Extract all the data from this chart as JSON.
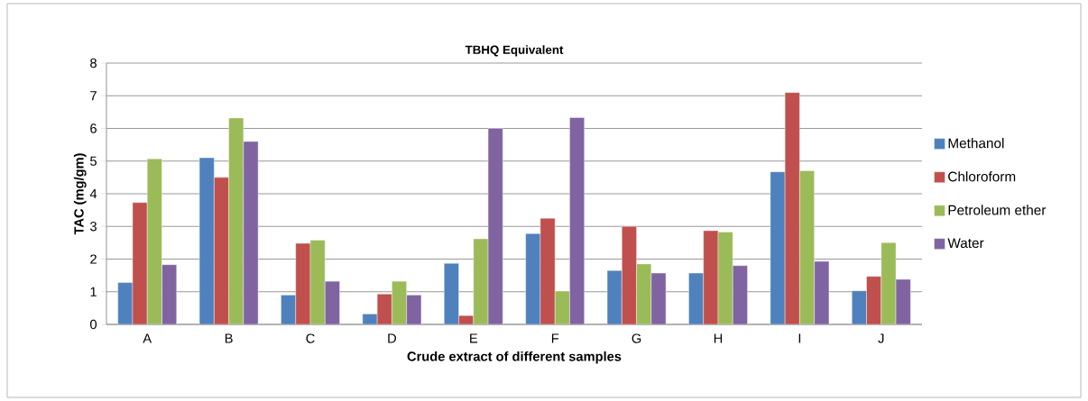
{
  "chart_data": {
    "type": "bar",
    "title": "TBHQ Equivalent",
    "xlabel": "Crude extract of different samples",
    "ylabel": "TAC (mg/gm)",
    "categories": [
      "A",
      "B",
      "C",
      "D",
      "E",
      "F",
      "G",
      "H",
      "I",
      "J"
    ],
    "series": [
      {
        "name": "Methanol",
        "color": "#4f81bd",
        "values": [
          1.28,
          5.1,
          0.9,
          0.32,
          1.87,
          2.78,
          1.65,
          1.57,
          4.67,
          1.03
        ]
      },
      {
        "name": "Chloroform",
        "color": "#c0504d",
        "values": [
          3.73,
          4.5,
          2.48,
          0.93,
          0.27,
          3.25,
          3.0,
          2.87,
          7.1,
          1.47
        ]
      },
      {
        "name": "Petroleum ether",
        "color": "#9bbb59",
        "values": [
          5.07,
          6.32,
          2.58,
          1.32,
          2.62,
          1.02,
          1.85,
          2.83,
          4.7,
          2.5
        ]
      },
      {
        "name": "Water",
        "color": "#8064a2",
        "values": [
          1.83,
          5.6,
          1.32,
          0.9,
          6.0,
          6.33,
          1.57,
          1.8,
          1.93,
          1.38
        ]
      }
    ],
    "ylim": [
      0,
      8
    ],
    "yticks": [
      0,
      1,
      2,
      3,
      4,
      5,
      6,
      7,
      8
    ],
    "grid": "y",
    "legend": "right"
  }
}
